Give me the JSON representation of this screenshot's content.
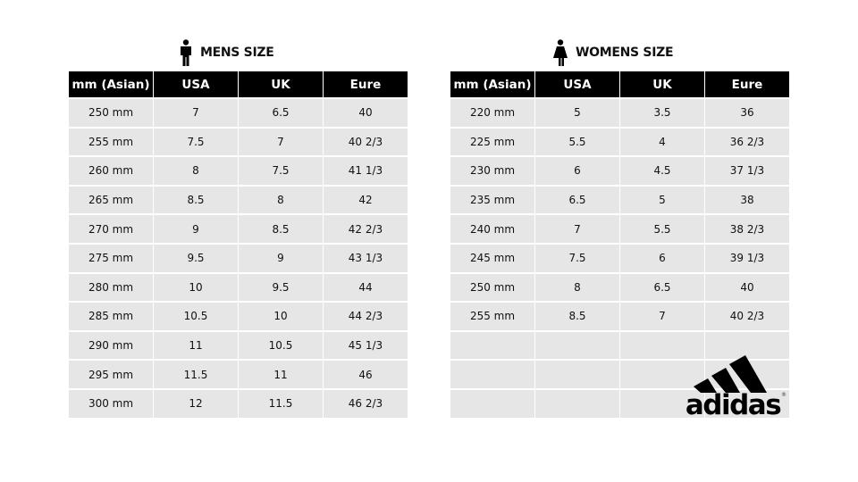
{
  "men": {
    "title": "MENS SIZE",
    "icon": "man-icon",
    "headers": [
      "mm (Asian)",
      "USA",
      "UK",
      "Eure"
    ],
    "rows": [
      [
        "250  mm",
        "7",
        "6.5",
        "40"
      ],
      [
        "255  mm",
        "7.5",
        "7",
        "40 2/3"
      ],
      [
        "260  mm",
        "8",
        "7.5",
        "41 1/3"
      ],
      [
        "265  mm",
        "8.5",
        "8",
        "42"
      ],
      [
        "270  mm",
        "9",
        "8.5",
        "42 2/3"
      ],
      [
        "275  mm",
        "9.5",
        "9",
        "43 1/3"
      ],
      [
        "280  mm",
        "10",
        "9.5",
        "44"
      ],
      [
        "285  mm",
        "10.5",
        "10",
        "44 2/3"
      ],
      [
        "290  mm",
        "11",
        "10.5",
        "45 1/3"
      ],
      [
        "295  mm",
        "11.5",
        "11",
        "46"
      ],
      [
        "300  mm",
        "12",
        "11.5",
        "46 2/3"
      ]
    ]
  },
  "women": {
    "title": "WOMENS SIZE",
    "icon": "woman-icon",
    "headers": [
      "mm (Asian)",
      "USA",
      "UK",
      "Eure"
    ],
    "rows": [
      [
        "220  mm",
        "5",
        "3.5",
        "36"
      ],
      [
        "225  mm",
        "5.5",
        "4",
        "36 2/3"
      ],
      [
        "230  mm",
        "6",
        "4.5",
        "37 1/3"
      ],
      [
        "235  mm",
        "6.5",
        "5",
        "38"
      ],
      [
        "240  mm",
        "7",
        "5.5",
        "38 2/3"
      ],
      [
        "245  mm",
        "7.5",
        "6",
        "39 1/3"
      ],
      [
        "250  mm",
        "8",
        "6.5",
        "40"
      ],
      [
        "255  mm",
        "8.5",
        "7",
        "40 2/3"
      ],
      [
        "",
        "",
        "",
        ""
      ],
      [
        "",
        "",
        "",
        ""
      ],
      [
        "",
        "",
        "",
        ""
      ]
    ]
  },
  "logo": {
    "text": "adidas",
    "mark": "®"
  }
}
